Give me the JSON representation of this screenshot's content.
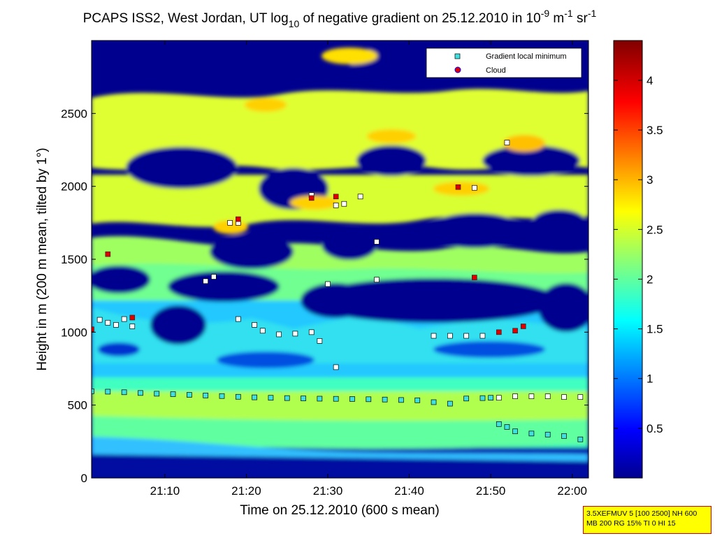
{
  "chart_data": {
    "type": "heatmap",
    "title_main": "PCAPS ISS2, West Jordan, UT log",
    "title_sub": "10",
    "title_mid": " of negative gradient on 25.12.2010 in 10",
    "title_sup1": "-9",
    "title_unit": " m",
    "title_sup2": "-1",
    "title_end": " sr",
    "title_sup3": "-1",
    "xlabel": "Time on 25.12.2010 (600 s mean)",
    "ylabel": "Height in m (200 m mean, tilted by 1°)",
    "x_range": [
      "21:01",
      "22:02"
    ],
    "ylim": [
      0,
      3000
    ],
    "x_ticks": [
      "21:10",
      "21:20",
      "21:30",
      "21:40",
      "21:50",
      "22:00"
    ],
    "y_ticks": [
      0,
      500,
      1000,
      1500,
      2000,
      2500
    ],
    "colorbar": {
      "colormap": "jet",
      "range": [
        0,
        4.4
      ],
      "ticks": [
        "0.5",
        "1",
        "1.5",
        "2",
        "2.5",
        "3",
        "3.5",
        "4"
      ]
    },
    "legend": {
      "position": "top-right",
      "entries": [
        {
          "label": "Gradient local minimum",
          "marker": "square",
          "color": "#40e0e0"
        },
        {
          "label": "Cloud",
          "marker": "circle",
          "color": "#dd0000"
        }
      ]
    },
    "series": [
      {
        "marker": "square-cyan",
        "points": [
          [
            "21:01",
            595
          ],
          [
            "21:03",
            592
          ],
          [
            "21:05",
            588
          ],
          [
            "21:07",
            583
          ],
          [
            "21:09",
            578
          ],
          [
            "21:11",
            575
          ],
          [
            "21:13",
            570
          ],
          [
            "21:15",
            566
          ],
          [
            "21:17",
            562
          ],
          [
            "21:19",
            557
          ],
          [
            "21:21",
            553
          ],
          [
            "21:23",
            550
          ],
          [
            "21:25",
            548
          ],
          [
            "21:27",
            546
          ],
          [
            "21:29",
            544
          ],
          [
            "21:31",
            543
          ],
          [
            "21:33",
            542
          ],
          [
            "21:35",
            540
          ],
          [
            "21:37",
            538
          ],
          [
            "21:39",
            535
          ],
          [
            "21:41",
            533
          ],
          [
            "21:43",
            520
          ],
          [
            "21:45",
            510
          ],
          [
            "21:47",
            545
          ],
          [
            "21:49",
            548
          ],
          [
            "21:50",
            550
          ],
          [
            "21:51",
            370
          ],
          [
            "21:52",
            350
          ],
          [
            "21:53",
            320
          ],
          [
            "21:55",
            305
          ],
          [
            "21:57",
            298
          ],
          [
            "21:59",
            288
          ],
          [
            "22:01",
            265
          ]
        ]
      },
      {
        "marker": "square-white",
        "points": [
          [
            "21:02",
            1085
          ],
          [
            "21:03",
            1065
          ],
          [
            "21:04",
            1050
          ],
          [
            "21:05",
            1090
          ],
          [
            "21:06",
            1040
          ],
          [
            "21:15",
            1350
          ],
          [
            "21:16",
            1380
          ],
          [
            "21:18",
            1750
          ],
          [
            "21:19",
            1750
          ],
          [
            "21:19",
            1090
          ],
          [
            "21:21",
            1050
          ],
          [
            "21:22",
            1010
          ],
          [
            "21:24",
            985
          ],
          [
            "21:26",
            990
          ],
          [
            "21:28",
            1000
          ],
          [
            "21:29",
            940
          ],
          [
            "21:28",
            1940
          ],
          [
            "21:30",
            1330
          ],
          [
            "21:31",
            1870
          ],
          [
            "21:32",
            1880
          ],
          [
            "21:34",
            1930
          ],
          [
            "21:31",
            760
          ],
          [
            "21:36",
            1620
          ],
          [
            "21:36",
            1360
          ],
          [
            "21:43",
            975
          ],
          [
            "21:45",
            975
          ],
          [
            "21:47",
            975
          ],
          [
            "21:49",
            975
          ],
          [
            "21:51",
            550
          ],
          [
            "21:53",
            560
          ],
          [
            "21:55",
            560
          ],
          [
            "21:57",
            560
          ],
          [
            "21:59",
            555
          ],
          [
            "22:01",
            555
          ],
          [
            "21:52",
            2300
          ],
          [
            "21:48",
            1990
          ]
        ]
      },
      {
        "marker": "circle-red",
        "points": [
          [
            "21:01",
            1020
          ],
          [
            "21:03",
            1535
          ],
          [
            "21:06",
            1100
          ],
          [
            "21:19",
            1775
          ],
          [
            "21:28",
            1920
          ],
          [
            "21:31",
            1930
          ],
          [
            "21:46",
            1995
          ],
          [
            "21:48",
            1375
          ],
          [
            "21:51",
            1000
          ],
          [
            "21:53",
            1010
          ],
          [
            "21:54",
            1040
          ]
        ]
      }
    ]
  },
  "info_box": {
    "line1": "3.5XEFMUV 5 [100 2500] NH 600",
    "line2": "MB 200 RG 15% TI 0 HI 15"
  }
}
